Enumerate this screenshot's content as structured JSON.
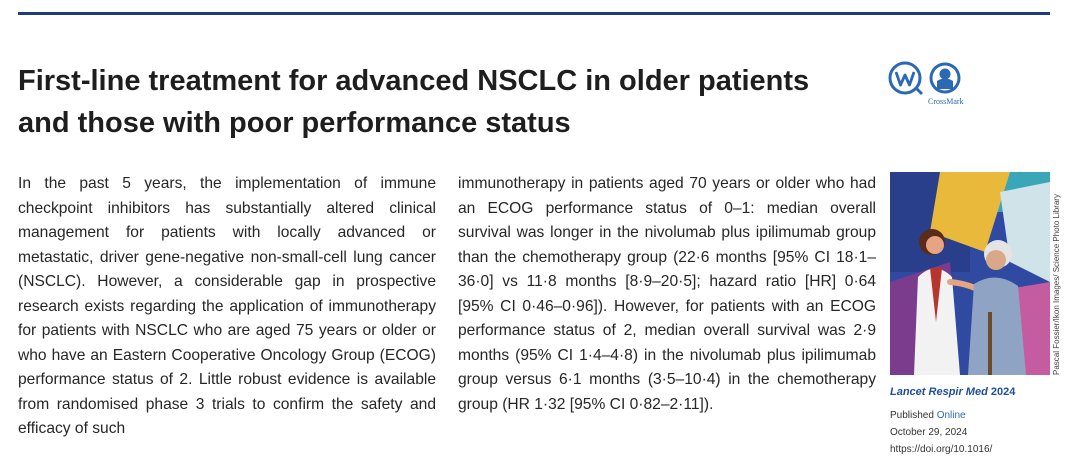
{
  "header": {
    "title": "First-line treatment for advanced NSCLC in older patients and those with poor performance status"
  },
  "badges": {
    "crossmark_label": "CrossMark"
  },
  "body": {
    "column1": "In the past 5 years, the implementation of immune checkpoint inhibitors has substantially altered clinical management for patients with locally advanced or metastatic, driver gene-negative non-small-cell lung cancer (NSCLC). However, a considerable gap in prospective research exists regarding the application of immunotherapy for patients with NSCLC who are aged 75 years or older or who have an Eastern Cooperative Oncology Group (ECOG) performance status of 2. Little robust evidence is available from randomised phase 3 trials to confirm the safety and efficacy of such",
    "column2": "immunotherapy in patients aged 70 years or older who had an ECOG performance status of 0–1: median overall survival was longer in the nivolumab plus ipilimumab group than the chemotherapy group (22·6 months [95% CI 18·1–36·0] vs 11·8 months [8·9–20·5]; hazard ratio [HR] 0·64 [95% CI 0·46–0·96]). However, for patients with an ECOG performance status of 2, median overall survival was 2·9 months (95% CI 1·4–4·8) in the nivolumab plus ipilimumab group versus 6·1 months (3·5–10·4) in the chemotherapy group (HR 1·32 [95% CI 0·82–2·11])."
  },
  "sidebar": {
    "image_credit": "Pascal Fossier/Ikon Images/ Science Photo Library",
    "journal": "Lancet Respir Med",
    "year": "2024",
    "published_prefix": "Published",
    "published_online": "Online",
    "date": "October 29, 2024",
    "doi": "https://doi.org/10.1016/"
  },
  "icons": [
    "w-comment-icon",
    "crossmark-icon"
  ],
  "colors": {
    "rule": "#1f3d7a",
    "accent": "#2c69b4",
    "journal": "#1f4e9c"
  }
}
